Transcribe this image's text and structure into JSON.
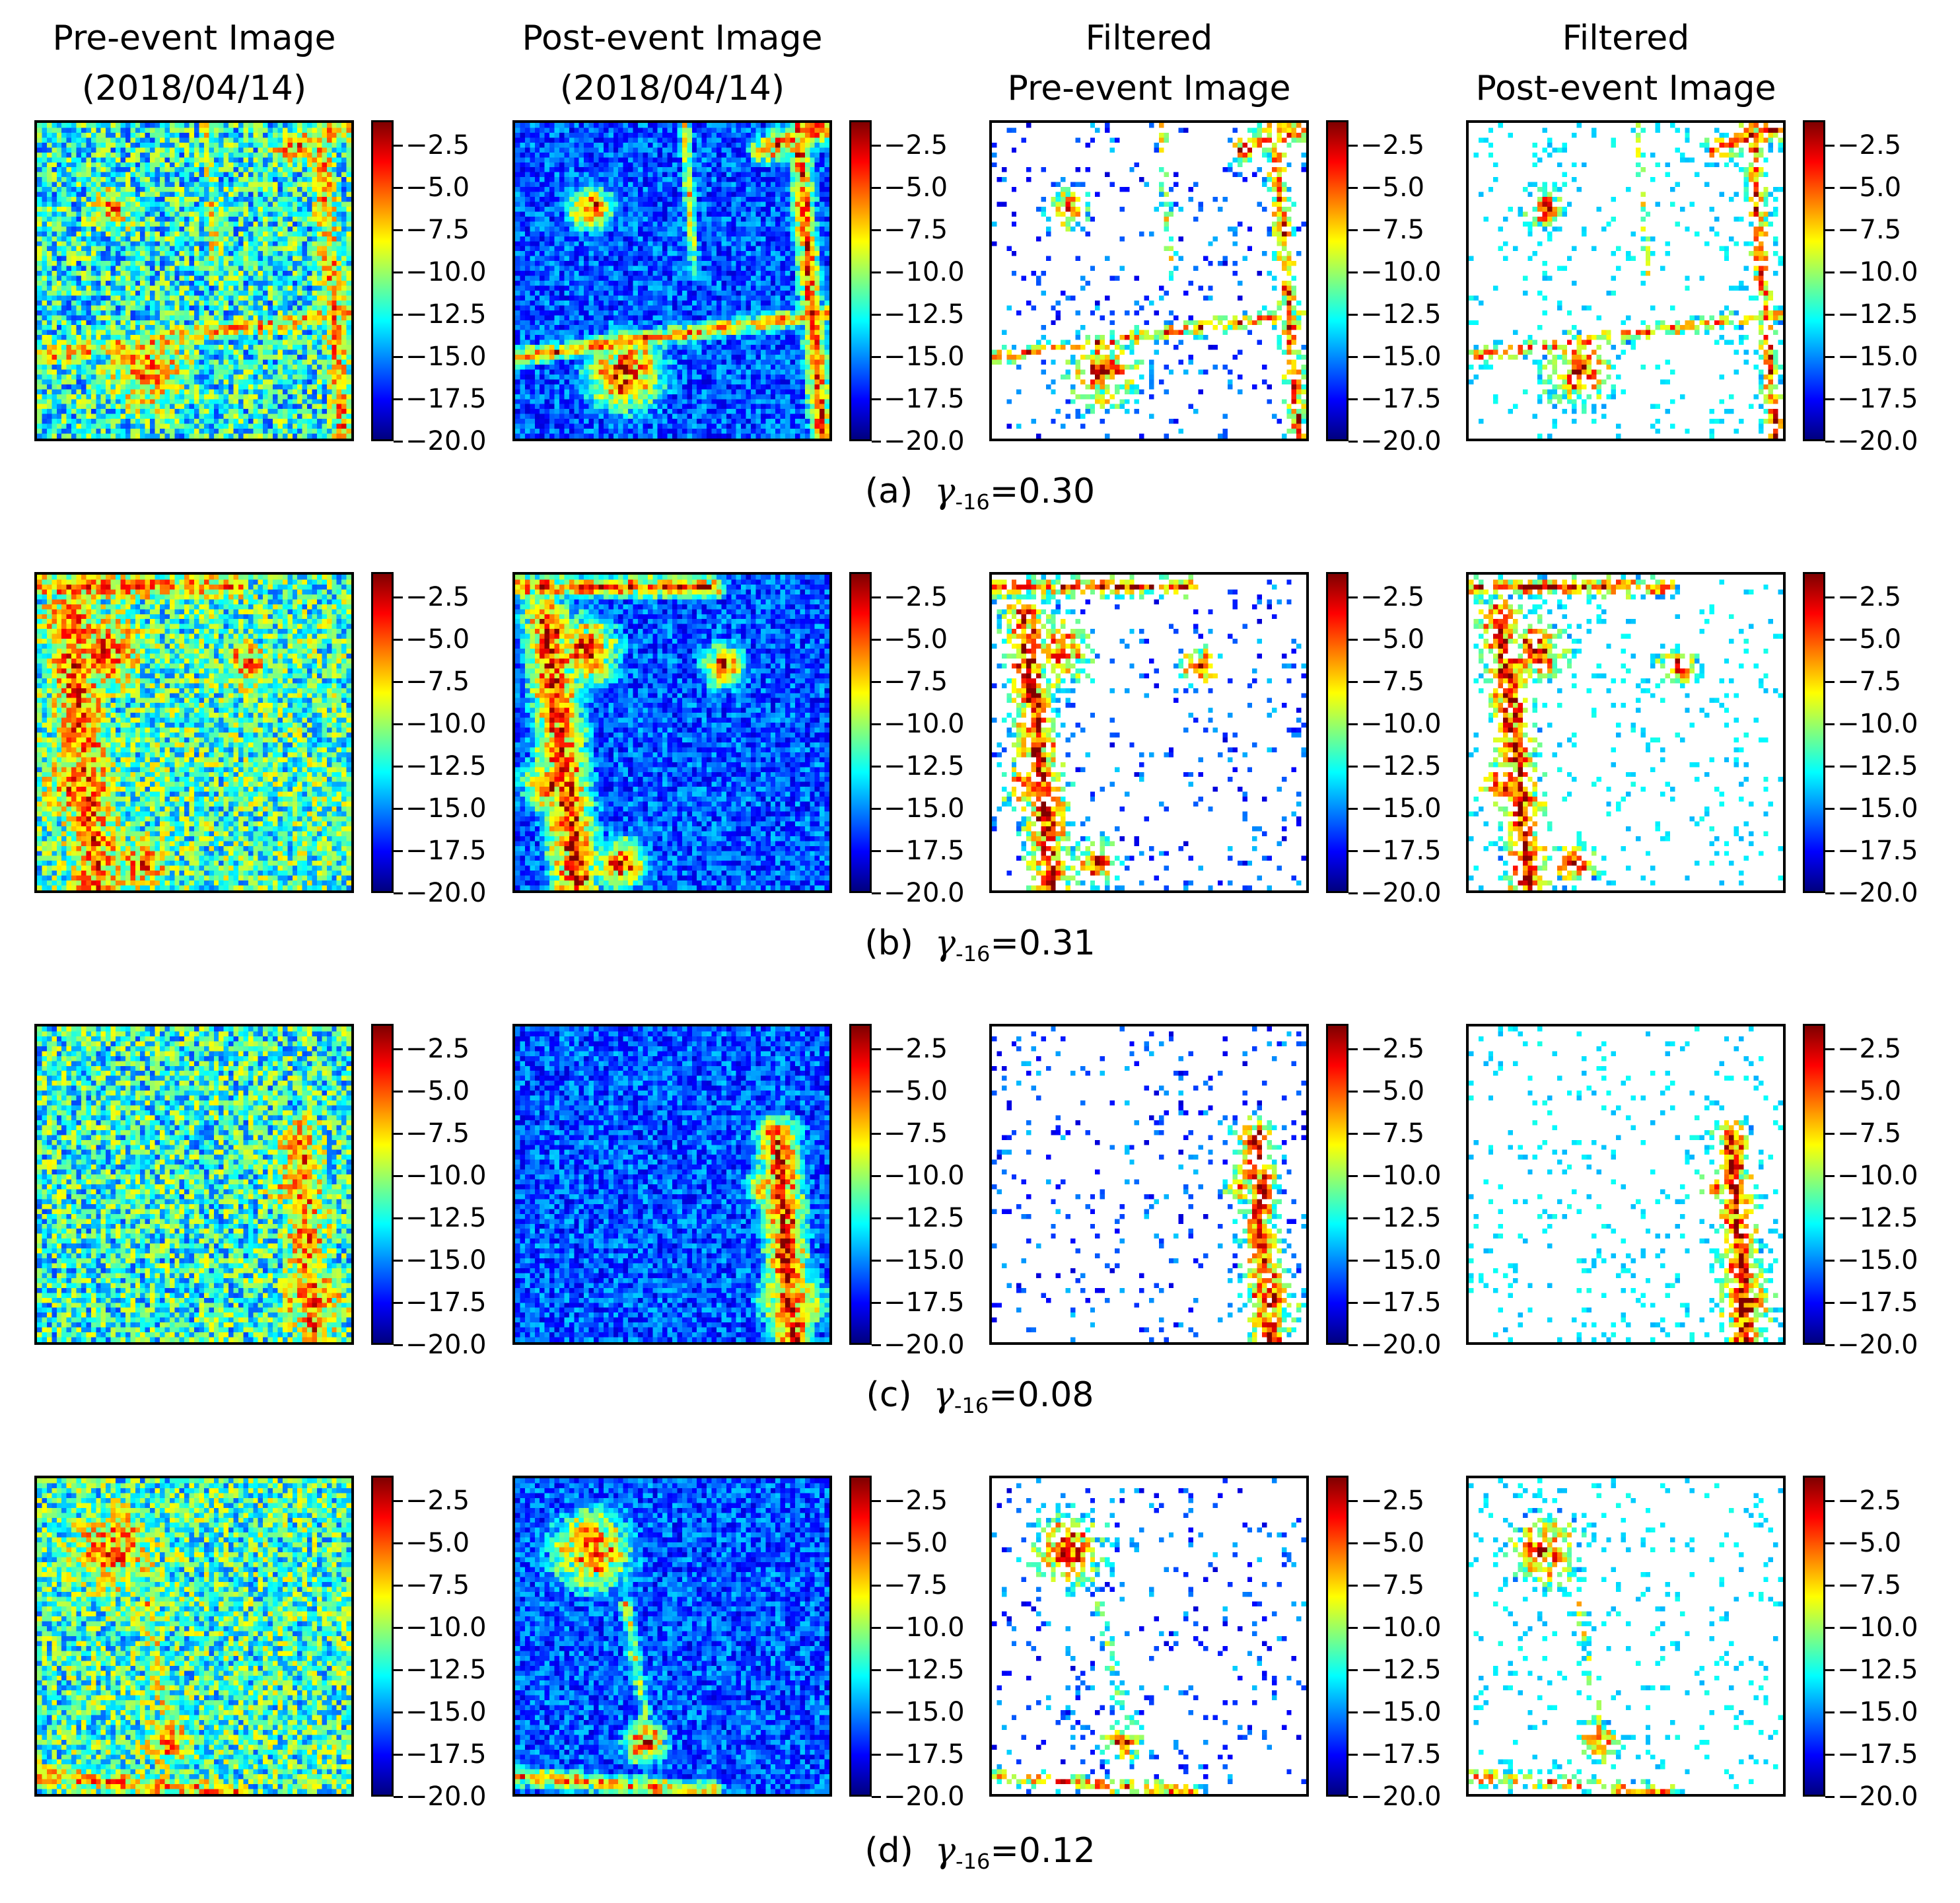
{
  "figure": {
    "column_titles": [
      [
        "Pre-event Image",
        "(2018/04/14)"
      ],
      [
        "Post-event Image",
        "(2018/04/14)"
      ],
      [
        "Filtered",
        "Pre-event Image"
      ],
      [
        "Filtered",
        "Post-event Image"
      ]
    ],
    "rows": [
      {
        "label": "(a)",
        "symbol": "γ",
        "subscript": "-16",
        "value": "=0.30"
      },
      {
        "label": "(b)",
        "symbol": "γ",
        "subscript": "-16",
        "value": "=0.31"
      },
      {
        "label": "(c)",
        "symbol": "γ",
        "subscript": "-16",
        "value": "=0.08"
      },
      {
        "label": "(d)",
        "symbol": "γ",
        "subscript": "-16",
        "value": "=0.12"
      }
    ]
  },
  "chart_data": {
    "type": "heatmap",
    "grid_size": [
      64,
      64
    ],
    "colormap": "jet",
    "value_range": [
      -20.0,
      -1.0
    ],
    "colorbar_ticks": [
      -2.5,
      -5.0,
      -7.5,
      -10.0,
      -12.5,
      -15.0,
      -17.5,
      -20.0
    ],
    "colorbar_tick_labels": [
      "−2.5",
      "−5.0",
      "−7.5",
      "−10.0",
      "−12.5",
      "−15.0",
      "−17.5",
      "−20.0"
    ],
    "panel_kinds": [
      "pre-event",
      "post-event",
      "filtered-pre-event",
      "filtered-post-event"
    ],
    "colors": {
      "border": "#000000",
      "background": "#ffffff"
    }
  }
}
